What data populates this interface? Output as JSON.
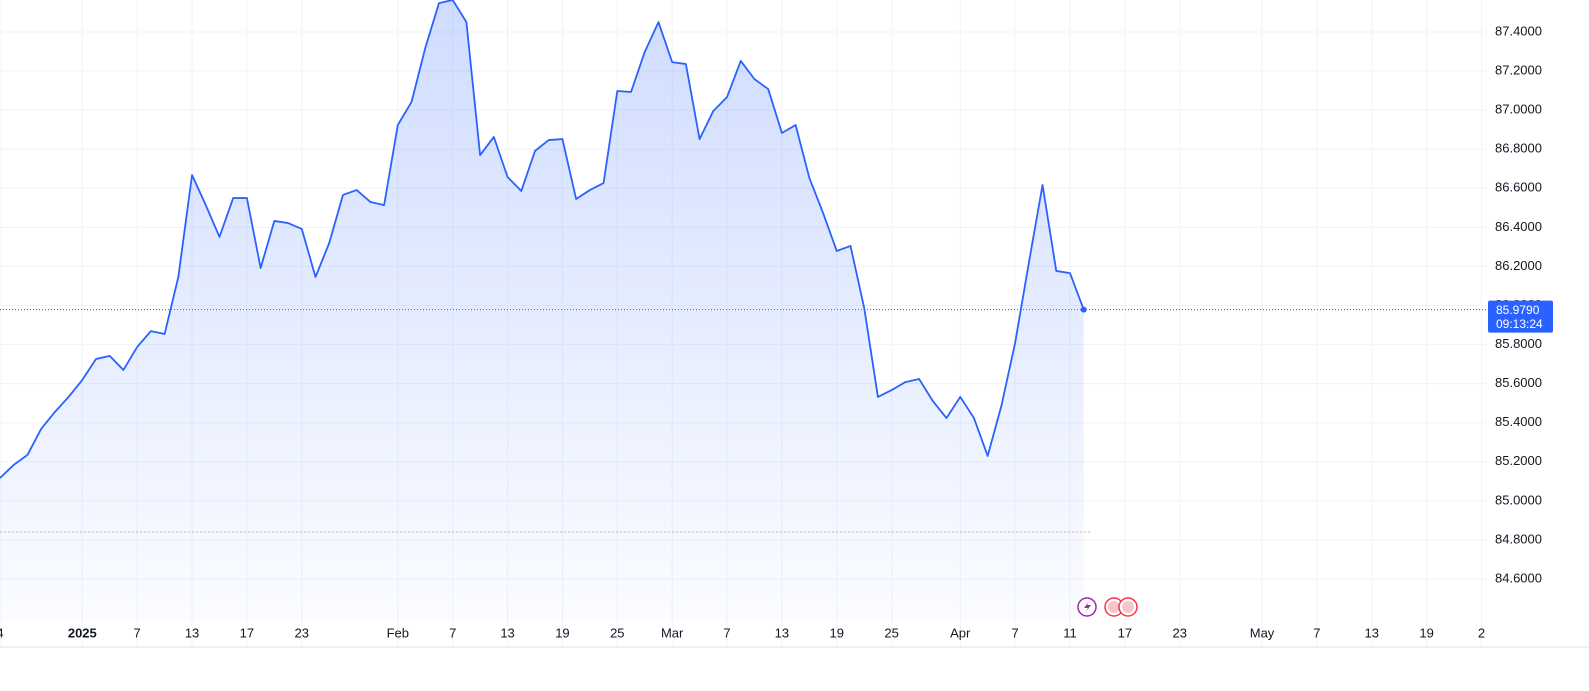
{
  "chart_data": {
    "type": "area",
    "series": [
      {
        "color": "#2962ff",
        "values": [
          85.117,
          85.184,
          85.235,
          85.368,
          85.455,
          85.532,
          85.619,
          85.726,
          85.742,
          85.67,
          85.788,
          85.869,
          85.854,
          86.146,
          86.668,
          86.514,
          86.351,
          86.55,
          86.55,
          86.192,
          86.433,
          86.422,
          86.392,
          86.146,
          86.32,
          86.566,
          86.591,
          86.53,
          86.514,
          86.924,
          87.042,
          87.318,
          87.548,
          87.564,
          87.451,
          86.77,
          86.863,
          86.658,
          86.586,
          86.791,
          86.847,
          86.852,
          86.545,
          86.591,
          86.627,
          87.098,
          87.093,
          87.298,
          87.451,
          87.246,
          87.236,
          86.852,
          86.996,
          87.067,
          87.252,
          87.159,
          87.108,
          86.883,
          86.924,
          86.653,
          86.474,
          86.279,
          86.305,
          85.987,
          85.532,
          85.567,
          85.608,
          85.624,
          85.511,
          85.424,
          85.532,
          85.424,
          85.23,
          85.486,
          85.808,
          86.218,
          86.617,
          86.177,
          86.166,
          85.979
        ]
      }
    ],
    "xlim": [
      0,
      108.4
    ],
    "xticks": [
      {
        "value": 0,
        "label": "4"
      },
      {
        "value": 6,
        "label": "2025",
        "bold": true
      },
      {
        "value": 10,
        "label": "7"
      },
      {
        "value": 14,
        "label": "13"
      },
      {
        "value": 18,
        "label": "17"
      },
      {
        "value": 22,
        "label": "23"
      },
      {
        "value": 29,
        "label": "Feb"
      },
      {
        "value": 33,
        "label": "7"
      },
      {
        "value": 37,
        "label": "13"
      },
      {
        "value": 41,
        "label": "19"
      },
      {
        "value": 45,
        "label": "25"
      },
      {
        "value": 49,
        "label": "Mar"
      },
      {
        "value": 53,
        "label": "7"
      },
      {
        "value": 57,
        "label": "13"
      },
      {
        "value": 61,
        "label": "19"
      },
      {
        "value": 65,
        "label": "25"
      },
      {
        "value": 70,
        "label": "Apr"
      },
      {
        "value": 74,
        "label": "7"
      },
      {
        "value": 78,
        "label": "11"
      },
      {
        "value": 82,
        "label": "17"
      },
      {
        "value": 86,
        "label": "23"
      },
      {
        "value": 92,
        "label": "May"
      },
      {
        "value": 96,
        "label": "7"
      },
      {
        "value": 100,
        "label": "13"
      },
      {
        "value": 104,
        "label": "19"
      },
      {
        "value": 108,
        "label": "2"
      }
    ],
    "ylim": [
      84.39,
      87.564
    ],
    "yticks": [
      {
        "value": 84.6,
        "label": "84.6000"
      },
      {
        "value": 84.8,
        "label": "84.8000"
      },
      {
        "value": 85.0,
        "label": "85.0000"
      },
      {
        "value": 85.2,
        "label": "85.2000"
      },
      {
        "value": 85.4,
        "label": "85.4000"
      },
      {
        "value": 85.6,
        "label": "85.6000"
      },
      {
        "value": 85.8,
        "label": "85.8000"
      },
      {
        "value": 86.0,
        "label": "86.0000"
      },
      {
        "value": 86.2,
        "label": "86.2000"
      },
      {
        "value": 86.4,
        "label": "86.4000"
      },
      {
        "value": 86.6,
        "label": "86.6000"
      },
      {
        "value": 86.8,
        "label": "86.8000"
      },
      {
        "value": 87.0,
        "label": "87.0000"
      },
      {
        "value": 87.2,
        "label": "87.2000"
      },
      {
        "value": 87.4,
        "label": "87.4000"
      }
    ],
    "grid": true,
    "baseline": 84.841,
    "price_label": {
      "value": 85.979,
      "label": "85.9790",
      "timer": "09:13:24"
    }
  }
}
